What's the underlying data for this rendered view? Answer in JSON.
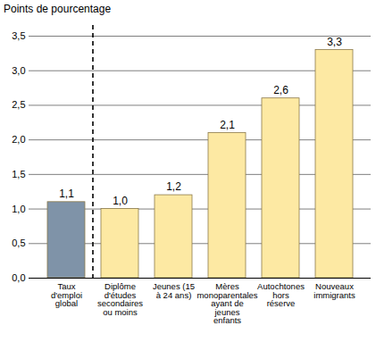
{
  "chart_data": {
    "type": "bar",
    "y_label": "Points de pourcentage",
    "categories": [
      "Taux d'emploi global",
      "Diplôme d'études secondaires ou moins",
      "Jeunes (15 à 24 ans)",
      "Mères monoparentales ayant de jeunes enfants",
      "Autochtones hors réserve",
      "Nouveaux immigrants"
    ],
    "values": [
      1.1,
      1.0,
      1.2,
      2.1,
      2.6,
      3.3
    ],
    "value_labels": [
      "1,1",
      "1,0",
      "1,2",
      "2,1",
      "2,6",
      "3,3"
    ],
    "colors": [
      "#7f93a8",
      "#fde9a3",
      "#fde9a3",
      "#fde9a3",
      "#fde9a3",
      "#fde9a3"
    ],
    "ylim": [
      0,
      3.5
    ],
    "yticks": [
      {
        "value": 0,
        "label": "0,0"
      },
      {
        "value": 0.5,
        "label": "0,5"
      },
      {
        "value": 1,
        "label": "1,0"
      },
      {
        "value": 1.5,
        "label": "1,5"
      },
      {
        "value": 2,
        "label": "2,0"
      },
      {
        "value": 2.5,
        "label": "2,5"
      },
      {
        "value": 3,
        "label": "3,0"
      },
      {
        "value": 3.5,
        "label": "3,5"
      }
    ],
    "grid": true,
    "data_labels": true
  }
}
